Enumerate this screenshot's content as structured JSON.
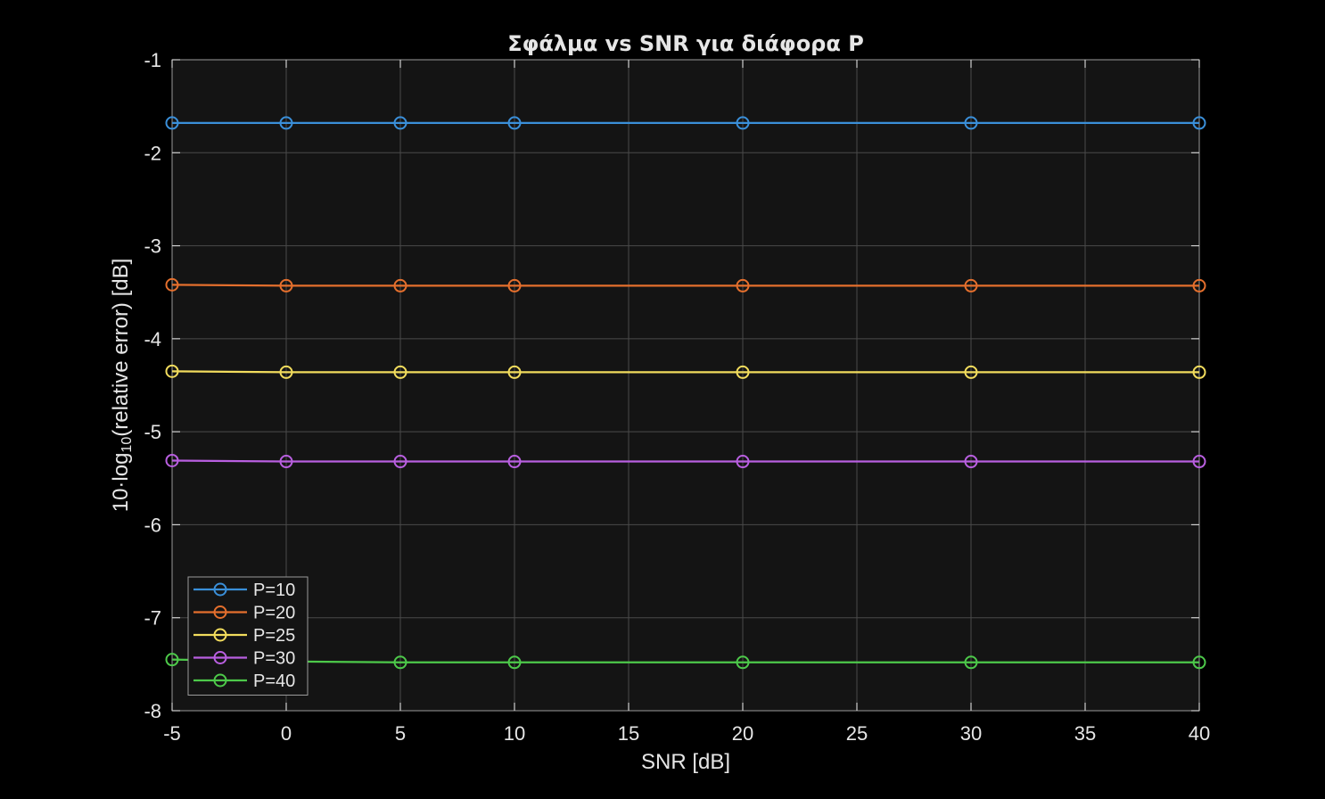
{
  "chart_data": {
    "type": "line",
    "title": "Σφάλμα vs SNR για διάφορα P",
    "xlabel": "SNR [dB]",
    "ylabel": {
      "prefix": "10·log",
      "subscript": "10",
      "suffix": "(relative  error)  [dB]"
    },
    "xlim": [
      -5,
      40
    ],
    "ylim": [
      -8,
      -1
    ],
    "xticks": [
      -5,
      0,
      5,
      10,
      15,
      20,
      25,
      30,
      35,
      40
    ],
    "yticks": [
      -1,
      -2,
      -3,
      -4,
      -5,
      -6,
      -7,
      -8
    ],
    "grid": true,
    "legend_placement": "bottom-left",
    "x": [
      -5,
      0,
      5,
      10,
      20,
      30,
      40
    ],
    "series": [
      {
        "name": "P=10",
        "color": "#3a8fd9",
        "values": [
          -1.68,
          -1.68,
          -1.68,
          -1.68,
          -1.68,
          -1.68,
          -1.68
        ]
      },
      {
        "name": "P=20",
        "color": "#e46f2d",
        "values": [
          -3.42,
          -3.43,
          -3.43,
          -3.43,
          -3.43,
          -3.43,
          -3.43
        ]
      },
      {
        "name": "P=25",
        "color": "#f2dc5d",
        "values": [
          -4.35,
          -4.36,
          -4.36,
          -4.36,
          -4.36,
          -4.36,
          -4.36
        ]
      },
      {
        "name": "P=30",
        "color": "#b95fe0",
        "values": [
          -5.31,
          -5.32,
          -5.32,
          -5.32,
          -5.32,
          -5.32,
          -5.32
        ]
      },
      {
        "name": "P=40",
        "color": "#4dc94a",
        "values": [
          -7.45,
          -7.47,
          -7.48,
          -7.48,
          -7.48,
          -7.48,
          -7.48
        ]
      }
    ]
  }
}
